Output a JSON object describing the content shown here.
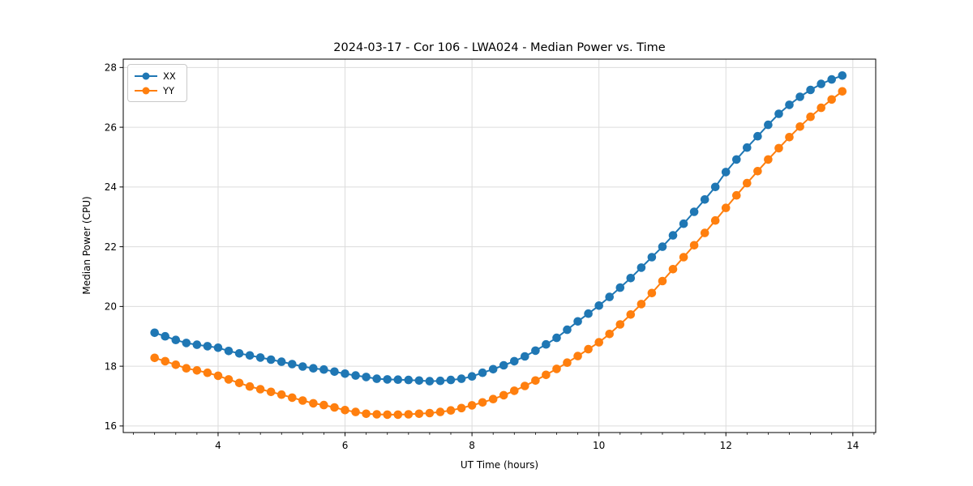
{
  "chart_data": {
    "type": "line",
    "title": "2024-03-17 - Cor 106 - LWA024 - Median Power vs. Time",
    "xlabel": "UT Time (hours)",
    "ylabel": "Median Power (CPU)",
    "xlim": [
      2.506,
      14.36
    ],
    "ylim": [
      15.78,
      28.28
    ],
    "xticks": [
      4,
      6,
      8,
      10,
      12,
      14
    ],
    "yticks": [
      16,
      18,
      20,
      22,
      24,
      26,
      28
    ],
    "x_minor_step": 0.3333333,
    "grid": true,
    "grid_color": "#dcdcdc",
    "legend_position": "upper-left",
    "x_start": 3.0,
    "x_step": 0.1666667,
    "series": [
      {
        "name": "XX",
        "color": "#1f77b4",
        "values": [
          19.12,
          19.0,
          18.88,
          18.78,
          18.72,
          18.67,
          18.62,
          18.51,
          18.43,
          18.36,
          18.29,
          18.22,
          18.15,
          18.07,
          17.99,
          17.93,
          17.89,
          17.82,
          17.75,
          17.69,
          17.64,
          17.58,
          17.56,
          17.55,
          17.54,
          17.52,
          17.5,
          17.51,
          17.54,
          17.58,
          17.66,
          17.78,
          17.9,
          18.03,
          18.17,
          18.33,
          18.52,
          18.73,
          18.95,
          19.22,
          19.5,
          19.76,
          20.03,
          20.32,
          20.63,
          20.95,
          21.3,
          21.65,
          22.0,
          22.38,
          22.77,
          23.17,
          23.58,
          24.0,
          24.5,
          24.92,
          25.32,
          25.7,
          26.08,
          26.45,
          26.75,
          27.02,
          27.25,
          27.45,
          27.6,
          27.73
        ]
      },
      {
        "name": "YY",
        "color": "#ff7f0e",
        "values": [
          18.28,
          18.17,
          18.05,
          17.93,
          17.86,
          17.78,
          17.68,
          17.56,
          17.44,
          17.32,
          17.23,
          17.14,
          17.05,
          16.95,
          16.85,
          16.76,
          16.7,
          16.62,
          16.53,
          16.47,
          16.41,
          16.39,
          16.38,
          16.38,
          16.39,
          16.41,
          16.43,
          16.47,
          16.52,
          16.6,
          16.69,
          16.79,
          16.9,
          17.03,
          17.18,
          17.34,
          17.52,
          17.71,
          17.91,
          18.12,
          18.34,
          18.57,
          18.8,
          19.08,
          19.4,
          19.73,
          20.08,
          20.45,
          20.85,
          21.25,
          21.65,
          22.05,
          22.46,
          22.88,
          23.3,
          23.72,
          24.13,
          24.53,
          24.92,
          25.3,
          25.67,
          26.02,
          26.35,
          26.65,
          26.93,
          27.2
        ]
      }
    ]
  }
}
